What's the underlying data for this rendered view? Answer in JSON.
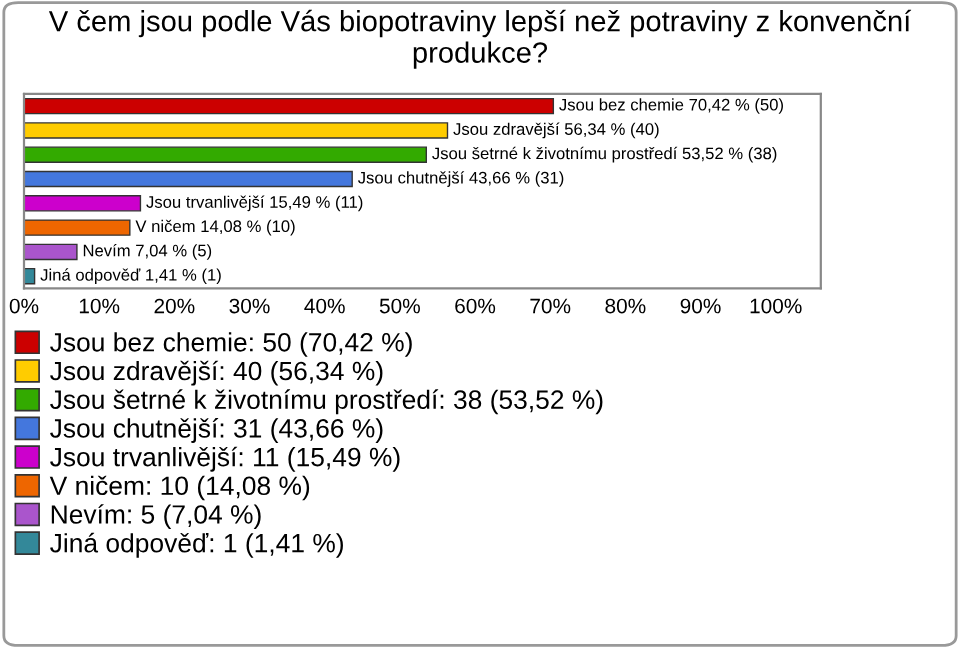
{
  "chart_data": {
    "type": "bar",
    "orientation": "horizontal",
    "title": "V čem jsou podle Vás biopotraviny lepší než potraviny z konvenční produkce?",
    "categories": [
      null,
      null,
      null,
      null,
      null,
      null,
      null,
      null
    ],
    "series": [
      {
        "name": "Jsou bez chemie: 50 (70,42 %)",
        "color": "#cc0000",
        "values": [
          70.42,
          null,
          null,
          null,
          null,
          null,
          null,
          null
        ],
        "value_labels": [
          "Jsou bez chemie 70,42 % (50)",
          null,
          null,
          null,
          null,
          null,
          null,
          null
        ]
      },
      {
        "name": "Jsou zdravější: 40 (56,34 %)",
        "color": "#ffcc00",
        "values": [
          null,
          56.34,
          null,
          null,
          null,
          null,
          null,
          null
        ],
        "value_labels": [
          null,
          "Jsou zdravější 56,34 % (40)",
          null,
          null,
          null,
          null,
          null,
          null
        ]
      },
      {
        "name": "Jsou šetrné k životnímu prostředí: 38 (53,52 %)",
        "color": "#33aa00",
        "values": [
          null,
          null,
          53.52,
          null,
          null,
          null,
          null,
          null
        ],
        "value_labels": [
          null,
          null,
          "Jsou šetrné k životnímu prostředí 53,52 % (38)",
          null,
          null,
          null,
          null,
          null
        ]
      },
      {
        "name": "Jsou chutnější: 31 (43,66 %)",
        "color": "#4477dd",
        "values": [
          null,
          null,
          null,
          43.66,
          null,
          null,
          null,
          null
        ],
        "value_labels": [
          null,
          null,
          null,
          "Jsou chutnější 43,66 % (31)",
          null,
          null,
          null,
          null
        ]
      },
      {
        "name": "Jsou trvanlivější: 11 (15,49 %)",
        "color": "#cc00cc",
        "values": [
          null,
          null,
          null,
          null,
          15.49,
          null,
          null,
          null
        ],
        "value_labels": [
          null,
          null,
          null,
          null,
          "Jsou trvanlivější 15,49 % (11)",
          null,
          null,
          null
        ]
      },
      {
        "name": "V ničem: 10 (14,08 %)",
        "color": "#ee6600",
        "values": [
          null,
          null,
          null,
          null,
          null,
          14.08,
          null,
          null
        ],
        "value_labels": [
          null,
          null,
          null,
          null,
          null,
          "V ničem 14,08 % (10)",
          null,
          null
        ]
      },
      {
        "name": "Nevím: 5 (7,04 %)",
        "color": "#aa55cc",
        "values": [
          null,
          null,
          null,
          null,
          null,
          null,
          7.04,
          null
        ],
        "value_labels": [
          null,
          null,
          null,
          null,
          null,
          null,
          "Nevím 7,04 % (5)",
          null
        ]
      },
      {
        "name": "Jiná odpověď: 1 (1,41 %)",
        "color": "#338899",
        "values": [
          null,
          null,
          null,
          null,
          null,
          null,
          null,
          1.41
        ],
        "value_labels": [
          null,
          null,
          null,
          null,
          null,
          null,
          null,
          "Jiná odpověď 1,41 % (1)"
        ]
      }
    ],
    "xlim": [
      0,
      106
    ],
    "xticks": [
      {
        "value": 0,
        "label": "0%"
      },
      {
        "value": 10,
        "label": "10%"
      },
      {
        "value": 20,
        "label": "20%"
      },
      {
        "value": 30,
        "label": "30%"
      },
      {
        "value": 40,
        "label": "40%"
      },
      {
        "value": 50,
        "label": "50%"
      },
      {
        "value": 60,
        "label": "60%"
      },
      {
        "value": 70,
        "label": "70%"
      },
      {
        "value": 80,
        "label": "80%"
      },
      {
        "value": 90,
        "label": "90%"
      },
      {
        "value": 100,
        "label": "100%"
      }
    ],
    "tick_labels": "x",
    "grid": false,
    "legend": "bottom left"
  }
}
